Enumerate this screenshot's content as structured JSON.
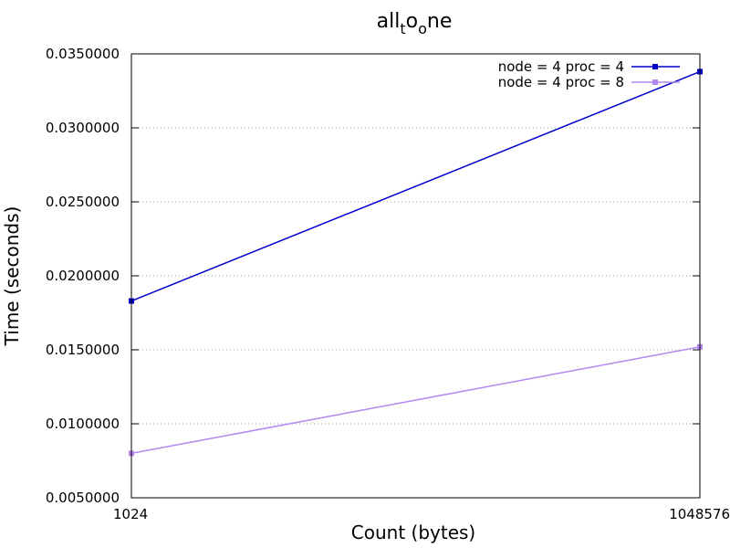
{
  "chart_data": {
    "type": "line",
    "title_main": "all",
    "title_sub1": "t",
    "title_mid": "o",
    "title_sub2": "o",
    "title_end": "ne",
    "xlabel": "Count (bytes)",
    "ylabel": "Time (seconds)",
    "categories": [
      "1024",
      "1048576"
    ],
    "ylim": [
      0.005,
      0.035
    ],
    "yticks": [
      "0.0050000",
      "0.0100000",
      "0.0150000",
      "0.0200000",
      "0.0250000",
      "0.0300000",
      "0.0350000"
    ],
    "ytick_values": [
      0.005,
      0.01,
      0.015,
      0.02,
      0.025,
      0.03,
      0.035
    ],
    "grid": "horizontal dotted",
    "legend_position": "top-right",
    "series": [
      {
        "name": "node = 4 proc = 4",
        "color": "#0000cc",
        "values": [
          0.0183,
          0.0338
        ]
      },
      {
        "name": "node = 4 proc = 8",
        "color": "#b388f0",
        "values": [
          0.008,
          0.0152
        ]
      }
    ]
  }
}
